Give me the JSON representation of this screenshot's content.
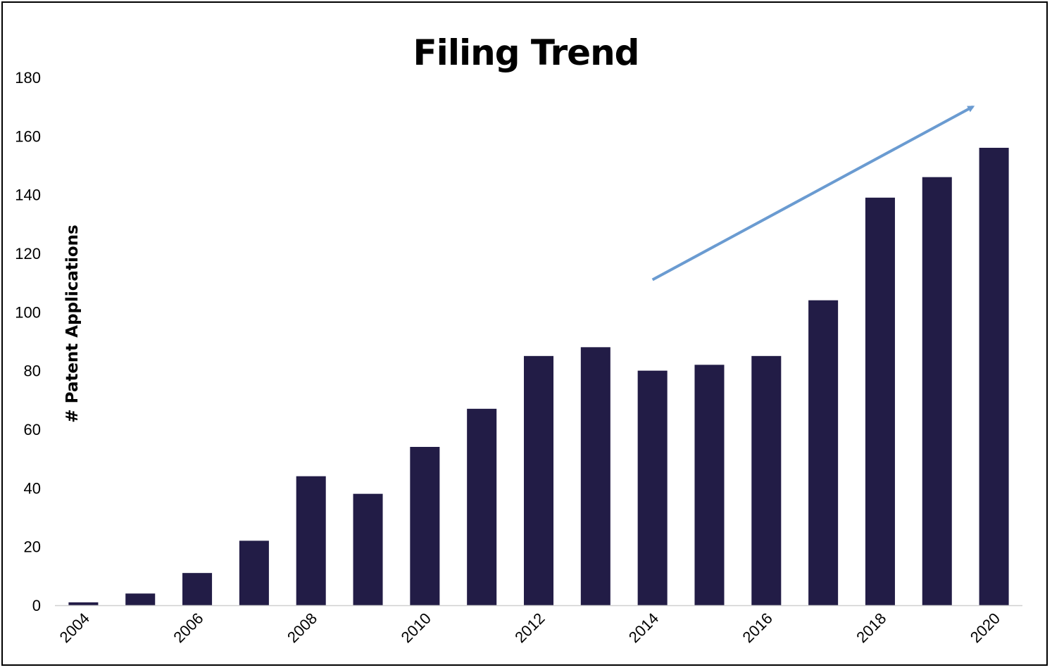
{
  "chart_data": {
    "type": "bar",
    "title": "Filing Trend",
    "xlabel": "",
    "ylabel": "# Patent Applications",
    "categories": [
      "2004",
      "2005",
      "2006",
      "2007",
      "2008",
      "2009",
      "2010",
      "2011",
      "2012",
      "2013",
      "2014",
      "2015",
      "2016",
      "2017",
      "2018",
      "2019",
      "2020"
    ],
    "x_tick_labels": [
      "2004",
      "2006",
      "2008",
      "2010",
      "2012",
      "2014",
      "2016",
      "2018",
      "2020"
    ],
    "values": [
      1,
      4,
      11,
      22,
      44,
      38,
      54,
      67,
      85,
      88,
      80,
      82,
      85,
      104,
      139,
      146,
      156
    ],
    "ylim": [
      0,
      180
    ],
    "yticks": [
      0,
      20,
      40,
      60,
      80,
      100,
      120,
      140,
      160,
      180
    ],
    "grid": false,
    "legend": "none",
    "bar_color": "#221C46",
    "annotation": {
      "type": "arrow",
      "color": "#6A9BD1",
      "from": {
        "x": "2014",
        "y": 111
      },
      "to": {
        "x": "2020",
        "y": 170
      }
    }
  }
}
